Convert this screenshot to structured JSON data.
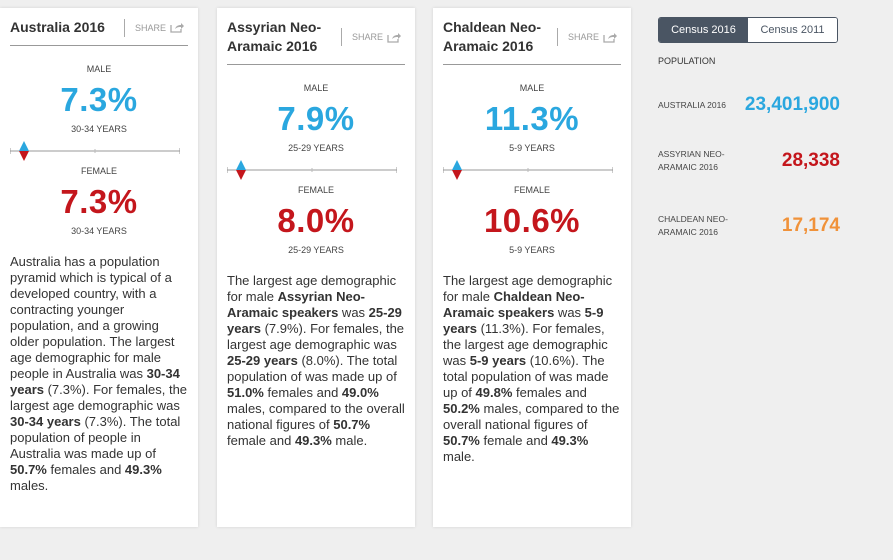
{
  "cards": [
    {
      "title": "Australia 2016",
      "share": "SHARE",
      "male": {
        "label": "MALE",
        "value": "7.3%",
        "age": "30-34 YEARS"
      },
      "female": {
        "label": "FEMALE",
        "value": "7.3%",
        "age": "30-34 YEARS"
      },
      "description": [
        {
          "text": "Australia has a population pyramid which is typical of a developed country, with a contracting younger population, and a growing older population. The largest age demographic for male people in Australia was ",
          "bold": false
        },
        {
          "text": "30-34 years",
          "bold": true
        },
        {
          "text": " (7.3%). For females, the largest age demographic was ",
          "bold": false
        },
        {
          "text": "30-34 years",
          "bold": true
        },
        {
          "text": " (7.3%). The total population of people in Australia was made up of ",
          "bold": false
        },
        {
          "text": "50.7%",
          "bold": true
        },
        {
          "text": " females and ",
          "bold": false
        },
        {
          "text": "49.3%",
          "bold": true
        },
        {
          "text": " males.",
          "bold": false
        }
      ]
    },
    {
      "title": "Assyrian Neo-Aramaic 2016",
      "share": "SHARE",
      "male": {
        "label": "MALE",
        "value": "7.9%",
        "age": "25-29 YEARS"
      },
      "female": {
        "label": "FEMALE",
        "value": "8.0%",
        "age": "25-29 YEARS"
      },
      "description": [
        {
          "text": "The largest age demographic for male ",
          "bold": false
        },
        {
          "text": "Assyrian Neo-Aramaic speakers",
          "bold": true
        },
        {
          "text": " was ",
          "bold": false
        },
        {
          "text": "25-29 years",
          "bold": true
        },
        {
          "text": " (7.9%). For females, the largest age demographic was ",
          "bold": false
        },
        {
          "text": "25-29 years",
          "bold": true
        },
        {
          "text": " (8.0%). The total population of was made up of ",
          "bold": false
        },
        {
          "text": "51.0%",
          "bold": true
        },
        {
          "text": " females and ",
          "bold": false
        },
        {
          "text": "49.0%",
          "bold": true
        },
        {
          "text": " males, compared to the overall national figures of ",
          "bold": false
        },
        {
          "text": "50.7%",
          "bold": true
        },
        {
          "text": " female and ",
          "bold": false
        },
        {
          "text": "49.3%",
          "bold": true
        },
        {
          "text": " male.",
          "bold": false
        }
      ]
    },
    {
      "title": "Chaldean Neo-Aramaic 2016",
      "share": "SHARE",
      "male": {
        "label": "MALE",
        "value": "11.3%",
        "age": "5-9 YEARS"
      },
      "female": {
        "label": "FEMALE",
        "value": "10.6%",
        "age": "5-9 YEARS"
      },
      "description": [
        {
          "text": "The largest age demographic for male ",
          "bold": false
        },
        {
          "text": "Chaldean Neo-Aramaic speakers",
          "bold": true
        },
        {
          "text": " was ",
          "bold": false
        },
        {
          "text": "5-9 years",
          "bold": true
        },
        {
          "text": " (11.3%). For females, the largest age demographic was ",
          "bold": false
        },
        {
          "text": "5-9 years",
          "bold": true
        },
        {
          "text": " (10.6%). The total population of was made up of ",
          "bold": false
        },
        {
          "text": "49.8%",
          "bold": true
        },
        {
          "text": " females and ",
          "bold": false
        },
        {
          "text": "50.2%",
          "bold": true
        },
        {
          "text": " males, compared to the overall national figures of ",
          "bold": false
        },
        {
          "text": "50.7%",
          "bold": true
        },
        {
          "text": " female and ",
          "bold": false
        },
        {
          "text": "49.3%",
          "bold": true
        },
        {
          "text": " male.",
          "bold": false
        }
      ]
    }
  ],
  "tabs": [
    "Census 2016",
    "Census 2011"
  ],
  "population": {
    "heading": "POPULATION",
    "rows": [
      {
        "label": "AUSTRALIA 2016",
        "value": "23,401,900"
      },
      {
        "label": "ASSYRIAN NEO-ARAMAIC 2016",
        "value": "28,338"
      },
      {
        "label": "CHALDEAN NEO-ARAMAIC 2016",
        "value": "17,174"
      }
    ]
  }
}
